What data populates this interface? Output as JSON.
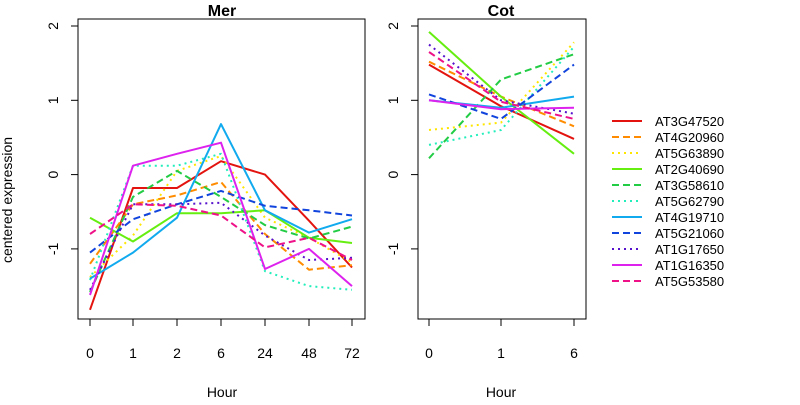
{
  "figure": {
    "shared_ylabel": "centered expression"
  },
  "chart_data": [
    {
      "type": "line",
      "title": "Mer",
      "xlabel": "Hour",
      "ylabel": "",
      "categories": [
        "0",
        "1",
        "2",
        "6",
        "24",
        "48",
        "72"
      ],
      "ylim": [
        -2,
        2
      ],
      "yticks": [
        "-1",
        "0",
        "1",
        "2"
      ],
      "ytick_values": [
        -1,
        0,
        1,
        2
      ],
      "grid": false,
      "series": [
        {
          "name": "AT3G47520",
          "values": [
            -1.82,
            -0.18,
            -0.18,
            0.18,
            0.0,
            -0.62,
            -1.25
          ]
        },
        {
          "name": "AT4G20960",
          "values": [
            -1.2,
            -0.4,
            -0.28,
            -0.1,
            -0.8,
            -1.28,
            -1.22
          ]
        },
        {
          "name": "AT5G63890",
          "values": [
            -1.38,
            -0.82,
            0.05,
            0.25,
            -0.58,
            -0.85,
            -1.18
          ]
        },
        {
          "name": "AT2G40690",
          "values": [
            -0.58,
            -0.9,
            -0.52,
            -0.52,
            -0.48,
            -0.85,
            -0.92
          ]
        },
        {
          "name": "AT3G58610",
          "values": [
            -1.58,
            -0.3,
            0.05,
            -0.3,
            -0.68,
            -0.86,
            -0.7
          ]
        },
        {
          "name": "AT5G62790",
          "values": [
            -1.42,
            0.12,
            0.12,
            0.28,
            -1.3,
            -1.5,
            -1.55
          ]
        },
        {
          "name": "AT4G19710",
          "values": [
            -1.4,
            -1.05,
            -0.58,
            0.68,
            -0.48,
            -0.78,
            -0.6
          ]
        },
        {
          "name": "AT5G21060",
          "values": [
            -1.05,
            -0.6,
            -0.4,
            -0.22,
            -0.42,
            -0.48,
            -0.55
          ]
        },
        {
          "name": "AT1G17650",
          "values": [
            -1.55,
            -0.4,
            -0.4,
            -0.38,
            -0.82,
            -1.15,
            -1.12
          ]
        },
        {
          "name": "AT1G16350",
          "values": [
            -1.62,
            0.12,
            0.28,
            0.43,
            -1.27,
            -1.0,
            -1.5
          ]
        },
        {
          "name": "AT5G53580",
          "values": [
            -0.8,
            -0.4,
            -0.42,
            -0.55,
            -0.98,
            -0.85,
            -1.15
          ]
        }
      ]
    },
    {
      "type": "line",
      "title": "Cot",
      "xlabel": "Hour",
      "ylabel": "",
      "categories": [
        "0",
        "1",
        "6"
      ],
      "ylim": [
        -2,
        2
      ],
      "yticks": [
        "-1",
        "0",
        "1",
        "2"
      ],
      "ytick_values": [
        -1,
        0,
        1,
        2
      ],
      "grid": false,
      "series": [
        {
          "name": "AT3G47520",
          "values": [
            1.48,
            0.92,
            0.48
          ]
        },
        {
          "name": "AT4G20960",
          "values": [
            1.52,
            1.05,
            0.65
          ]
        },
        {
          "name": "AT5G63890",
          "values": [
            0.6,
            0.7,
            1.78
          ]
        },
        {
          "name": "AT2G40690",
          "values": [
            1.92,
            1.05,
            0.28
          ]
        },
        {
          "name": "AT3G58610",
          "values": [
            0.22,
            1.28,
            1.62
          ]
        },
        {
          "name": "AT5G62790",
          "values": [
            0.4,
            0.6,
            1.72
          ]
        },
        {
          "name": "AT4G19710",
          "values": [
            1.0,
            0.9,
            1.05
          ]
        },
        {
          "name": "AT5G21060",
          "values": [
            1.08,
            0.75,
            1.48
          ]
        },
        {
          "name": "AT1G17650",
          "values": [
            1.75,
            1.0,
            0.82
          ]
        },
        {
          "name": "AT1G16350",
          "values": [
            1.0,
            0.88,
            0.9
          ]
        },
        {
          "name": "AT5G53580",
          "values": [
            1.65,
            0.98,
            0.75
          ]
        }
      ]
    }
  ],
  "legend": {
    "placement": "right",
    "entries": [
      {
        "name": "AT3G47520",
        "color": "#E3140F",
        "dash": "solid"
      },
      {
        "name": "AT4G20960",
        "color": "#FF8C00",
        "dash": "dashed"
      },
      {
        "name": "AT5G63890",
        "color": "#FFE600",
        "dash": "dotted"
      },
      {
        "name": "AT2G40690",
        "color": "#66EE11",
        "dash": "solid"
      },
      {
        "name": "AT3G58610",
        "color": "#22CC44",
        "dash": "dashed"
      },
      {
        "name": "AT5G62790",
        "color": "#22EEBB",
        "dash": "dotted"
      },
      {
        "name": "AT4G19710",
        "color": "#11AAEE",
        "dash": "solid"
      },
      {
        "name": "AT5G21060",
        "color": "#1144DD",
        "dash": "dashed"
      },
      {
        "name": "AT1G17650",
        "color": "#5511CC",
        "dash": "dotted"
      },
      {
        "name": "AT1G16350",
        "color": "#DD22EE",
        "dash": "solid"
      },
      {
        "name": "AT5G53580",
        "color": "#EE1188",
        "dash": "dashed"
      }
    ]
  }
}
